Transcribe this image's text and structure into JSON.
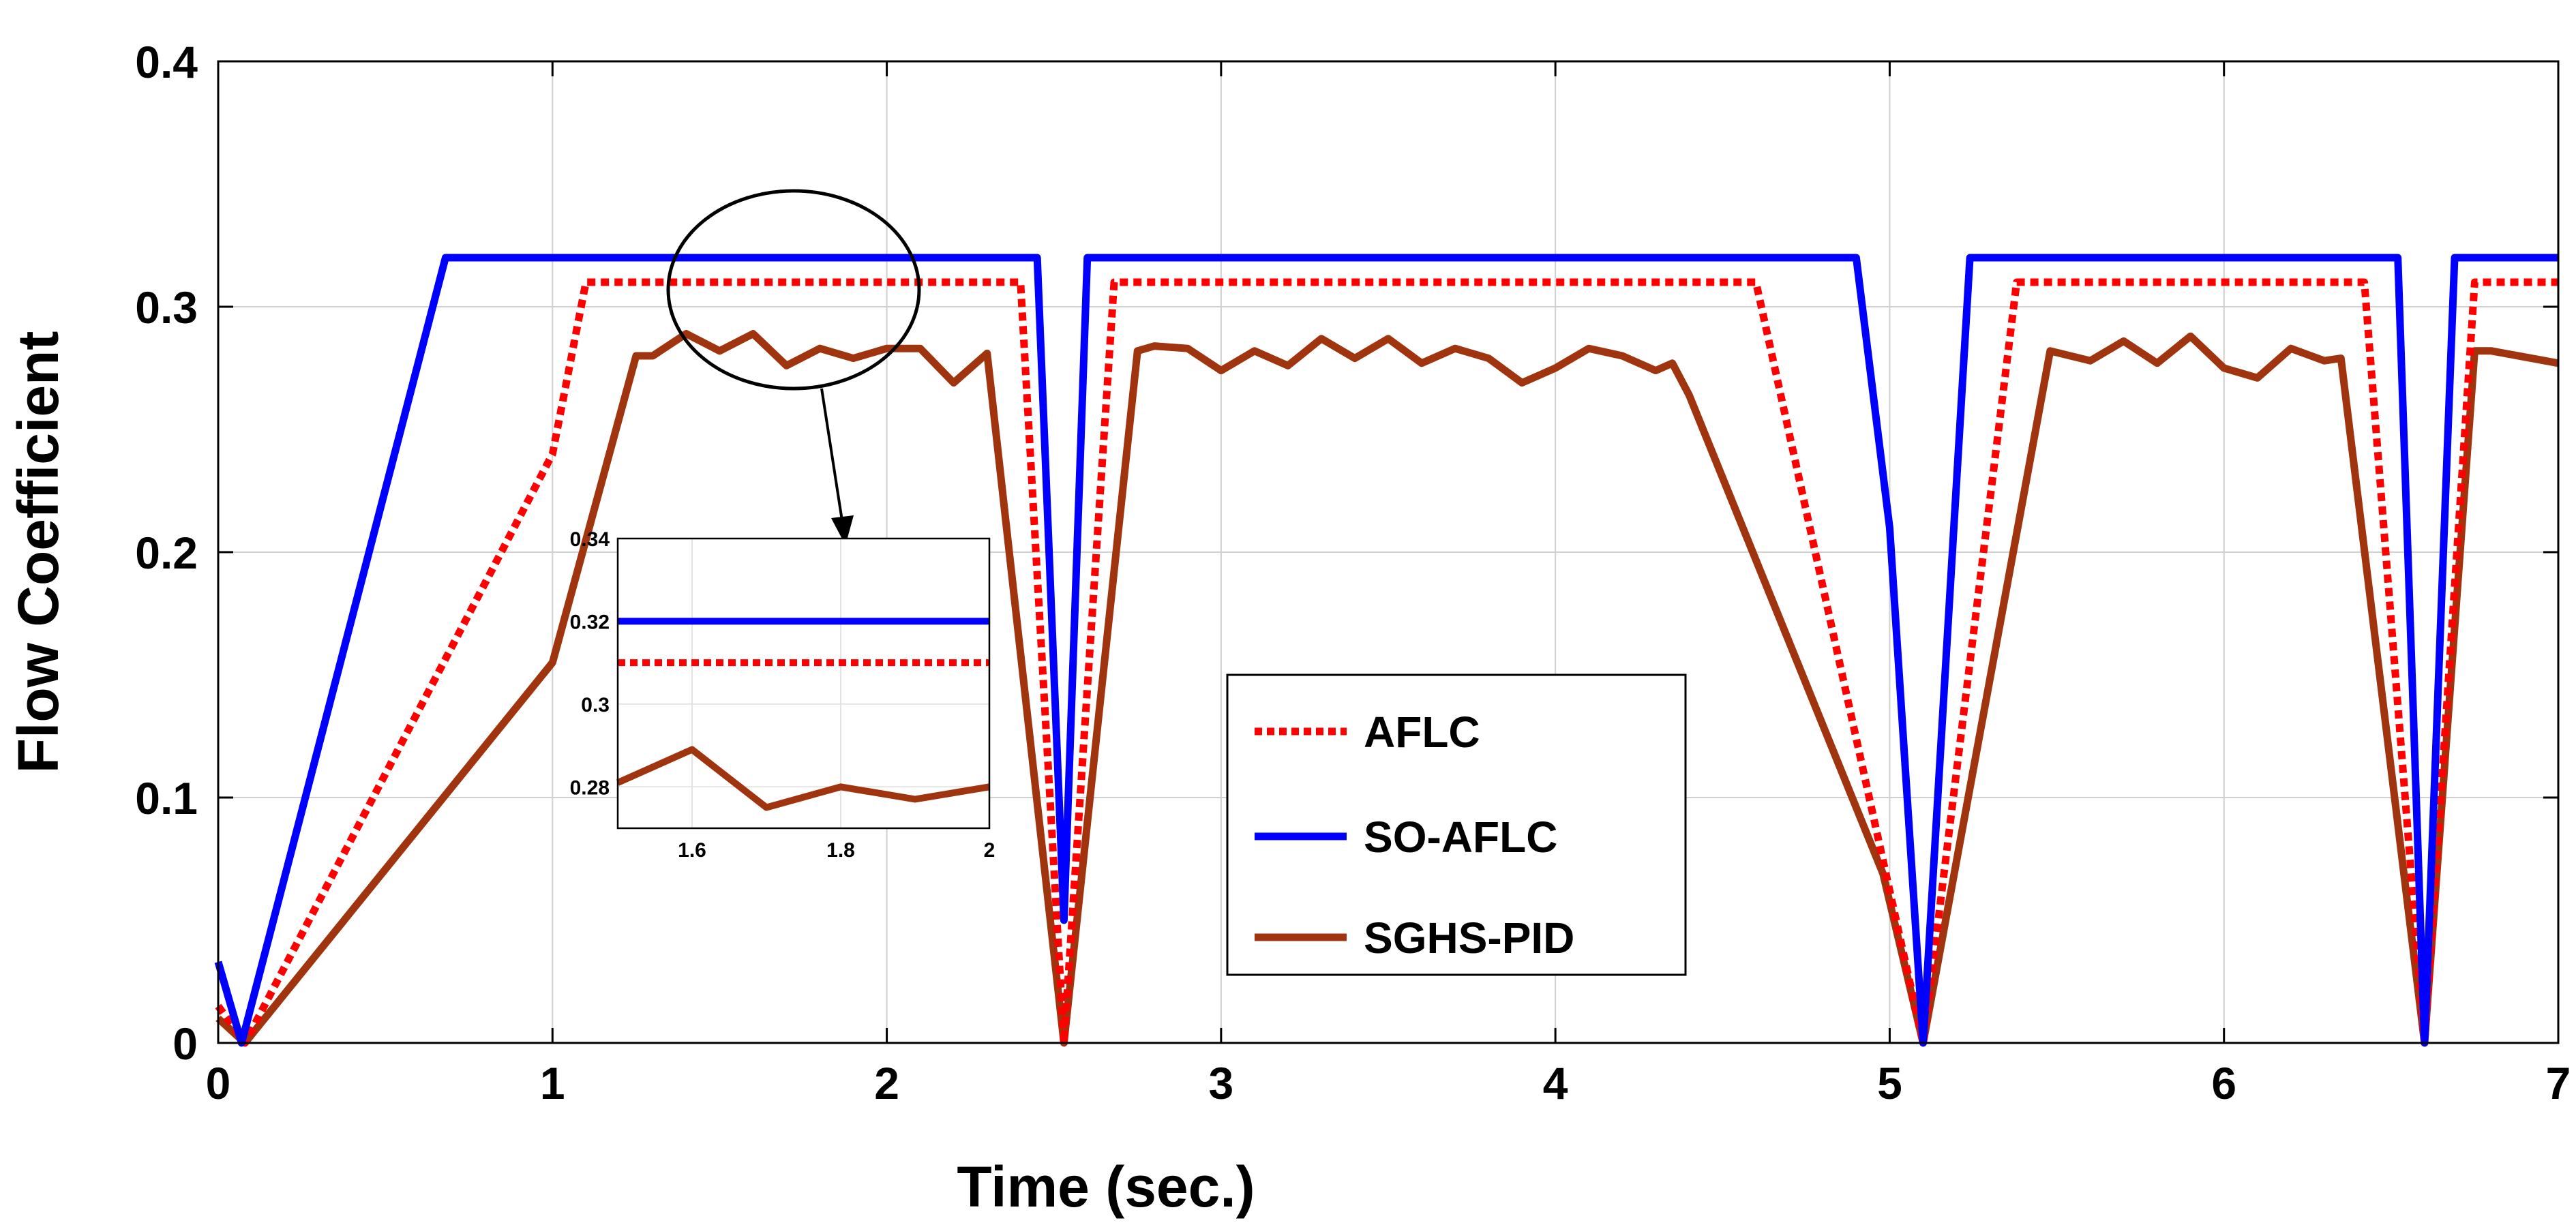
{
  "chart_data": {
    "type": "line",
    "xlabel": "Time (sec.)",
    "ylabel": "Flow Coefficient",
    "xlim": [
      0,
      7
    ],
    "ylim": [
      0,
      0.4
    ],
    "xticks": [
      "0",
      "1",
      "2",
      "3",
      "4",
      "5",
      "6",
      "7"
    ],
    "yticks": [
      "0",
      "0.1",
      "0.2",
      "0.3",
      "0.4"
    ],
    "grid": true,
    "legend_position": "lower-center-right",
    "series": [
      {
        "name": "AFLC",
        "color": "#ff0000",
        "style": "dotted",
        "points": [
          [
            0,
            0.015
          ],
          [
            0.08,
            0
          ],
          [
            1.0,
            0.24
          ],
          [
            1.1,
            0.31
          ],
          [
            2.4,
            0.31
          ],
          [
            2.53,
            0
          ],
          [
            2.68,
            0.31
          ],
          [
            4.6,
            0.31
          ],
          [
            5.1,
            0
          ],
          [
            5.38,
            0.31
          ],
          [
            6.42,
            0.31
          ],
          [
            6.6,
            0
          ],
          [
            6.75,
            0.31
          ],
          [
            7,
            0.31
          ]
        ]
      },
      {
        "name": "SO-AFLC",
        "color": "#0000ff",
        "style": "solid",
        "points": [
          [
            0,
            0.033
          ],
          [
            0.07,
            0
          ],
          [
            0.68,
            0.32
          ],
          [
            2.45,
            0.32
          ],
          [
            2.53,
            0.05
          ],
          [
            2.6,
            0.32
          ],
          [
            4.9,
            0.32
          ],
          [
            5.0,
            0.21
          ],
          [
            5.1,
            0
          ],
          [
            5.24,
            0.32
          ],
          [
            6.52,
            0.32
          ],
          [
            6.6,
            0
          ],
          [
            6.69,
            0.32
          ],
          [
            7,
            0.32
          ]
        ]
      },
      {
        "name": "SGHS-PID",
        "color": "#a0340f",
        "style": "solid",
        "points": [
          [
            0,
            0.01
          ],
          [
            0.08,
            0
          ],
          [
            1.0,
            0.155
          ],
          [
            1.25,
            0.28
          ],
          [
            1.3,
            0.28
          ],
          [
            1.4,
            0.289
          ],
          [
            1.5,
            0.282
          ],
          [
            1.6,
            0.289
          ],
          [
            1.7,
            0.276
          ],
          [
            1.8,
            0.283
          ],
          [
            1.9,
            0.279
          ],
          [
            2.0,
            0.283
          ],
          [
            2.1,
            0.283
          ],
          [
            2.2,
            0.269
          ],
          [
            2.3,
            0.281
          ],
          [
            2.53,
            0
          ],
          [
            2.75,
            0.282
          ],
          [
            2.8,
            0.284
          ],
          [
            2.9,
            0.283
          ],
          [
            3.0,
            0.274
          ],
          [
            3.1,
            0.282
          ],
          [
            3.2,
            0.276
          ],
          [
            3.3,
            0.287
          ],
          [
            3.4,
            0.279
          ],
          [
            3.5,
            0.287
          ],
          [
            3.6,
            0.277
          ],
          [
            3.7,
            0.283
          ],
          [
            3.8,
            0.279
          ],
          [
            3.9,
            0.269
          ],
          [
            4.0,
            0.275
          ],
          [
            4.1,
            0.283
          ],
          [
            4.2,
            0.28
          ],
          [
            4.3,
            0.274
          ],
          [
            4.35,
            0.277
          ],
          [
            4.4,
            0.264
          ],
          [
            4.98,
            0.069
          ],
          [
            5.1,
            0
          ],
          [
            5.48,
            0.282
          ],
          [
            5.6,
            0.278
          ],
          [
            5.7,
            0.286
          ],
          [
            5.8,
            0.277
          ],
          [
            5.9,
            0.288
          ],
          [
            6.0,
            0.275
          ],
          [
            6.1,
            0.271
          ],
          [
            6.2,
            0.283
          ],
          [
            6.3,
            0.278
          ],
          [
            6.35,
            0.279
          ],
          [
            6.6,
            0
          ],
          [
            6.75,
            0.282
          ],
          [
            6.8,
            0.282
          ],
          [
            7.0,
            0.277
          ]
        ]
      }
    ],
    "inset": {
      "xlim": [
        1.5,
        2.0
      ],
      "ylim": [
        0.27,
        0.34
      ],
      "xticks": [
        "1.6",
        "1.8",
        "2"
      ],
      "yticks": [
        "0.28",
        "0.3",
        "0.32",
        "0.34"
      ],
      "series": [
        {
          "name": "SO-AFLC",
          "color": "#0000ff",
          "style": "solid",
          "points": [
            [
              1.5,
              0.32
            ],
            [
              2.0,
              0.32
            ]
          ]
        },
        {
          "name": "AFLC",
          "color": "#ff0000",
          "style": "dotted",
          "points": [
            [
              1.5,
              0.31
            ],
            [
              2.0,
              0.31
            ]
          ]
        },
        {
          "name": "SGHS-PID",
          "color": "#a0340f",
          "style": "solid",
          "points": [
            [
              1.5,
              0.281
            ],
            [
              1.6,
              0.289
            ],
            [
              1.7,
              0.275
            ],
            [
              1.8,
              0.28
            ],
            [
              1.9,
              0.277
            ],
            [
              2.0,
              0.28
            ]
          ]
        }
      ]
    },
    "legend": [
      "AFLC",
      "SO-AFLC",
      "SGHS-PID"
    ]
  }
}
